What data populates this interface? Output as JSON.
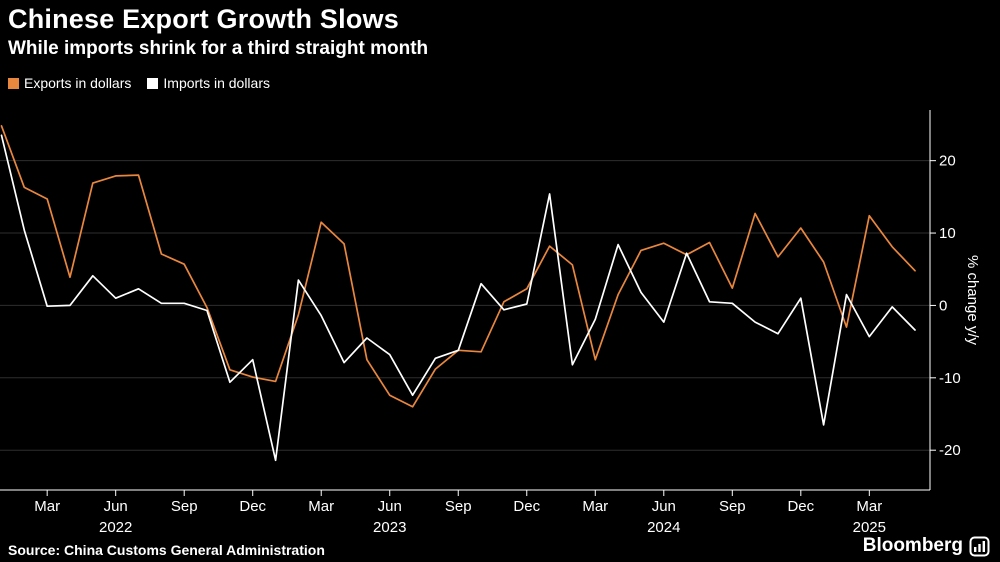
{
  "header": {
    "title": "Chinese Export Growth Slows",
    "subtitle": "While imports shrink for a third straight month"
  },
  "legend": {
    "items": [
      {
        "label": "Exports in dollars",
        "color": "#E9873E"
      },
      {
        "label": "Imports in dollars",
        "color": "#FFFFFF"
      }
    ]
  },
  "footer": {
    "source": "Source: China Customs General Administration",
    "brand": "Bloomberg"
  },
  "colors": {
    "background": "#000000",
    "grid": "#2E2E2E",
    "axis": "#FFFFFF",
    "text": "#FFFFFF",
    "exports_line": "#E9873E",
    "imports_line": "#FFFFFF"
  },
  "chart_data": {
    "type": "line",
    "title": "Chinese Export Growth Slows",
    "subtitle": "While imports shrink for a third straight month",
    "ylabel": "% change y/y",
    "frequency": "monthly",
    "start": "Jan 2022",
    "end": "May 2025",
    "ylim": [
      -25.5,
      27
    ],
    "yticks": [
      20,
      10,
      0,
      -10,
      -20
    ],
    "grid": "horizontal",
    "legend_position": "top-left",
    "xticks": [
      {
        "index": 2,
        "label": "Mar"
      },
      {
        "index": 5,
        "label": "Jun"
      },
      {
        "index": 8,
        "label": "Sep"
      },
      {
        "index": 11,
        "label": "Dec"
      },
      {
        "index": 14,
        "label": "Mar"
      },
      {
        "index": 17,
        "label": "Jun"
      },
      {
        "index": 20,
        "label": "Sep"
      },
      {
        "index": 23,
        "label": "Dec"
      },
      {
        "index": 26,
        "label": "Mar"
      },
      {
        "index": 29,
        "label": "Jun"
      },
      {
        "index": 32,
        "label": "Sep"
      },
      {
        "index": 35,
        "label": "Dec"
      },
      {
        "index": 38,
        "label": "Mar"
      }
    ],
    "year_ticks": [
      {
        "index": 5,
        "label": "2022"
      },
      {
        "index": 17,
        "label": "2023"
      },
      {
        "index": 29,
        "label": "2024"
      },
      {
        "index": 38,
        "label": "2025"
      }
    ],
    "series": [
      {
        "name": "Exports in dollars",
        "color": "#E9873E",
        "values": [
          24.8,
          16.3,
          14.7,
          3.9,
          16.9,
          17.9,
          18.0,
          7.1,
          5.7,
          -0.3,
          -8.9,
          -9.9,
          -10.5,
          -1.3,
          11.5,
          8.5,
          -7.5,
          -12.4,
          -14.0,
          -8.8,
          -6.2,
          -6.4,
          0.5,
          2.3,
          8.2,
          5.6,
          -7.5,
          1.5,
          7.6,
          8.6,
          7.0,
          8.7,
          2.4,
          12.7,
          6.7,
          10.7,
          6.0,
          -3.0,
          12.4,
          8.1,
          4.8
        ]
      },
      {
        "name": "Imports in dollars",
        "color": "#FFFFFF",
        "values": [
          23.5,
          10.4,
          -0.1,
          0.0,
          4.1,
          1.0,
          2.3,
          0.3,
          0.3,
          -0.7,
          -10.6,
          -7.5,
          -21.4,
          3.5,
          -1.4,
          -7.9,
          -4.5,
          -6.8,
          -12.4,
          -7.3,
          -6.2,
          3.0,
          -0.6,
          0.2,
          15.4,
          -8.2,
          -1.9,
          8.4,
          1.8,
          -2.3,
          7.2,
          0.5,
          0.3,
          -2.3,
          -3.9,
          1.0,
          -16.5,
          1.5,
          -4.3,
          -0.2,
          -3.4
        ]
      }
    ]
  }
}
